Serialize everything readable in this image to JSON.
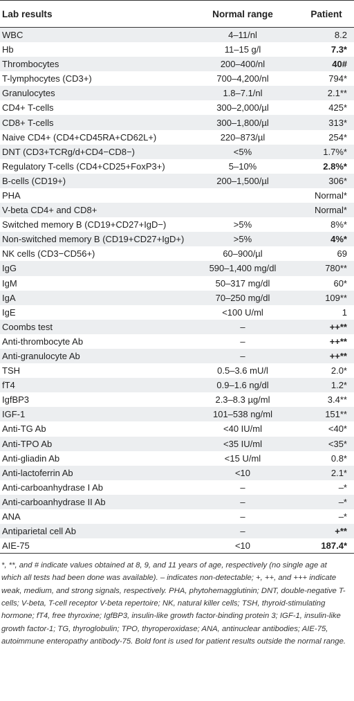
{
  "table": {
    "headers": [
      "Lab results",
      "Normal range",
      "Patient"
    ],
    "rows": [
      {
        "lab": "WBC",
        "range": "4–11/nl",
        "patient": "8.2",
        "bold": false
      },
      {
        "lab": "Hb",
        "range": "11–15 g/l",
        "patient": "7.3*",
        "bold": true
      },
      {
        "lab": "Thrombocytes",
        "range": "200–400/nl",
        "patient": "40#",
        "bold": true
      },
      {
        "lab": "T-lymphocytes (CD3+)",
        "range": "700–4,200/nl",
        "patient": "794*",
        "bold": false
      },
      {
        "lab": "Granulocytes",
        "range": "1.8–7.1/nl",
        "patient": "2.1**",
        "bold": false
      },
      {
        "lab": "CD4+ T-cells",
        "range": "300–2,000/µl",
        "patient": "425*",
        "bold": false
      },
      {
        "lab": "CD8+ T-cells",
        "range": "300–1,800/µl",
        "patient": "313*",
        "bold": false
      },
      {
        "lab": "Naive CD4+ (CD4+CD45RA+CD62L+)",
        "range": "220–873/µl",
        "patient": "254*",
        "bold": false
      },
      {
        "lab": "DNT (CD3+TCRg/d+CD4−CD8−)",
        "range": "<5%",
        "patient": "1.7%*",
        "bold": false
      },
      {
        "lab": "Regulatory T-cells (CD4+CD25+FoxP3+)",
        "range": "5–10%",
        "patient": "2.8%*",
        "bold": true
      },
      {
        "lab": "B-cells (CD19+)",
        "range": "200–1,500/µl",
        "patient": "306*",
        "bold": false
      },
      {
        "lab": "PHA",
        "range": "",
        "patient": "Normal*",
        "bold": false
      },
      {
        "lab": "V-beta CD4+ and CD8+",
        "range": "",
        "patient": "Normal*",
        "bold": false
      },
      {
        "lab": "Switched memory B (CD19+CD27+IgD−)",
        "range": ">5%",
        "patient": "8%*",
        "bold": false
      },
      {
        "lab": "Non-switched memory B (CD19+CD27+IgD+)",
        "range": ">5%",
        "patient": "4%*",
        "bold": true
      },
      {
        "lab": "NK cells (CD3−CD56+)",
        "range": "60–900/µl",
        "patient": "69",
        "bold": false
      },
      {
        "lab": "IgG",
        "range": "590–1,400 mg/dl",
        "patient": "780**",
        "bold": false
      },
      {
        "lab": "IgM",
        "range": "50–317 mg/dl",
        "patient": "60*",
        "bold": false
      },
      {
        "lab": "IgA",
        "range": "70–250 mg/dl",
        "patient": "109**",
        "bold": false
      },
      {
        "lab": "IgE",
        "range": "<100 U/ml",
        "patient": "1",
        "bold": false
      },
      {
        "lab": "Coombs test",
        "range": "–",
        "patient": "++**",
        "bold": true
      },
      {
        "lab": "Anti-thrombocyte Ab",
        "range": "–",
        "patient": "++**",
        "bold": true
      },
      {
        "lab": "Anti-granulocyte Ab",
        "range": "–",
        "patient": "++**",
        "bold": true
      },
      {
        "lab": "TSH",
        "range": "0.5–3.6 mU/l",
        "patient": "2.0*",
        "bold": false
      },
      {
        "lab": "fT4",
        "range": "0.9–1.6 ng/dl",
        "patient": "1.2*",
        "bold": false
      },
      {
        "lab": "IgfBP3",
        "range": "2.3–8.3 µg/ml",
        "patient": "3.4**",
        "bold": false
      },
      {
        "lab": "IGF-1",
        "range": "101–538 ng/ml",
        "patient": "151**",
        "bold": false
      },
      {
        "lab": "Anti-TG Ab",
        "range": "<40 IU/ml",
        "patient": "<40*",
        "bold": false
      },
      {
        "lab": "Anti-TPO Ab",
        "range": "<35 IU/ml",
        "patient": "<35*",
        "bold": false
      },
      {
        "lab": "Anti-gliadin Ab",
        "range": "<15 U/ml",
        "patient": "0.8*",
        "bold": false
      },
      {
        "lab": "Anti-lactoferrin Ab",
        "range": "<10",
        "patient": "2.1*",
        "bold": false
      },
      {
        "lab": "Anti-carboanhydrase I Ab",
        "range": "–",
        "patient": "–*",
        "bold": false
      },
      {
        "lab": "Anti-carboanhydrase II Ab",
        "range": "–",
        "patient": "–*",
        "bold": false
      },
      {
        "lab": "ANA",
        "range": "–",
        "patient": "–*",
        "bold": false
      },
      {
        "lab": "Antiparietal cell Ab",
        "range": "–",
        "patient": "+**",
        "bold": true
      },
      {
        "lab": "AIE-75",
        "range": "<10",
        "patient": "187.4*",
        "bold": true
      }
    ]
  },
  "footnote": "*, **, and # indicate values obtained at 8, 9, and 11 years of age, respectively (no single age at which all tests had been done was available). – indicates non-detectable; +, ++, and +++ indicate weak, medium, and strong signals, respectively. PHA, phytohemagglutinin; DNT, double-negative T-cells; V-beta, T-cell receptor V-beta repertoire; NK, natural killer cells; TSH, thyroid-stimulating hormone; fT4, free thyroxine; IgfBP3, insulin-like growth factor-binding protein 3; IGF-1, insulin-like growth factor-1; TG, thyroglobulin; TPO, thyroperoxidase; ANA, antinuclear antibodies; AIE-75, autoimmune enteropathy antibody-75. Bold font is used for patient results outside the normal range."
}
